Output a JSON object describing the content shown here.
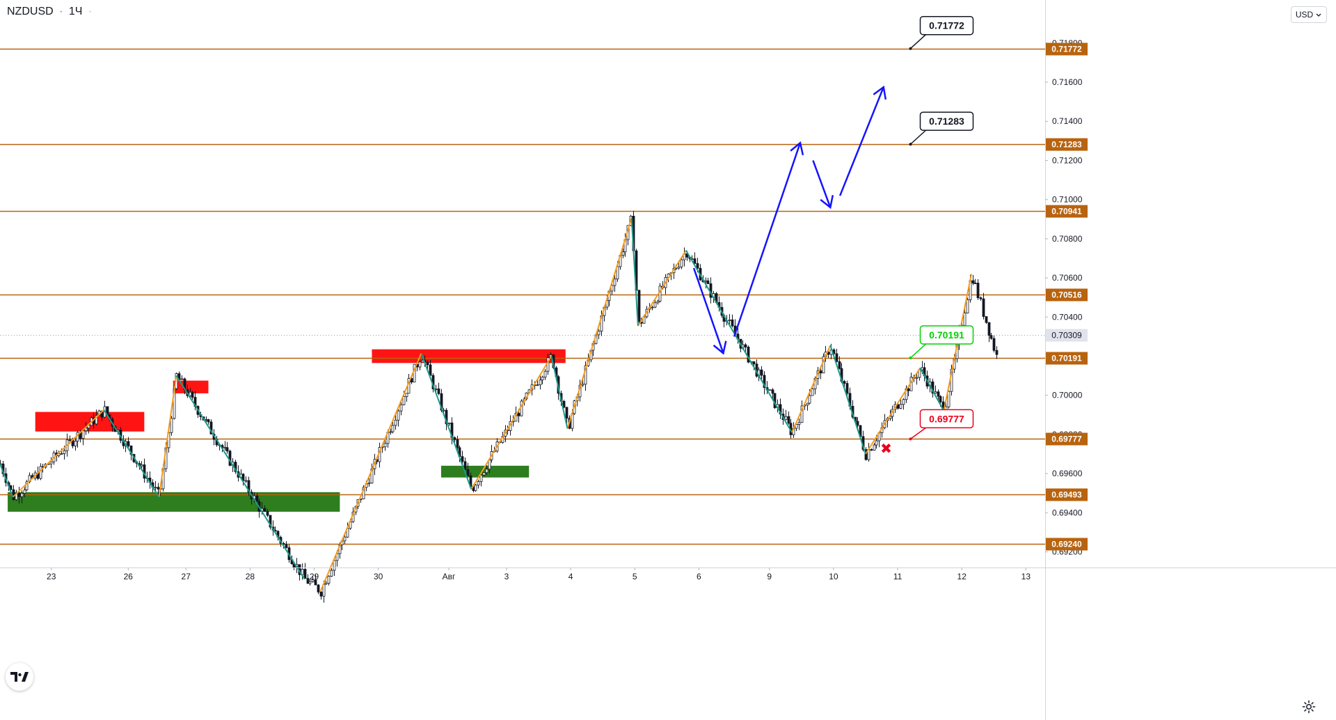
{
  "header": {
    "symbol": "NZDUSD",
    "separator": "·",
    "interval": "1Ч",
    "dot": "·"
  },
  "currency_button": {
    "label": "USD",
    "chevron": "chevron-down-icon"
  },
  "colors": {
    "level": "#b8630e",
    "green_label": "#00d200",
    "red_label": "#e8001c",
    "blue_arrow": "#1414ff",
    "up_leg": "#f59a1a",
    "down_leg": "#1e9a88",
    "supply_zone": "#ff1414",
    "demand_zone": "#2e7d1e",
    "bull": "#131722"
  },
  "chart_data": {
    "type": "candlestick",
    "symbol": "NZDUSD",
    "interval": "1Ч",
    "ylim": [
      0.6912,
      0.7202
    ],
    "y_ticks": [
      "0.71800",
      "0.71600",
      "0.71400",
      "0.71200",
      "0.71000",
      "0.70800",
      "0.70600",
      "0.70400",
      "0.70000",
      "0.69800",
      "0.69600",
      "0.69400",
      "0.69200"
    ],
    "x_ticks": [
      {
        "label": "23",
        "x": 0.8
      },
      {
        "label": "26",
        "x": 2
      },
      {
        "label": "27",
        "x": 2.9
      },
      {
        "label": "28",
        "x": 3.9
      },
      {
        "label": "29",
        "x": 4.9
      },
      {
        "label": "30",
        "x": 5.9
      },
      {
        "label": "Авг",
        "x": 7
      },
      {
        "label": "3",
        "x": 7.9
      },
      {
        "label": "4",
        "x": 8.9
      },
      {
        "label": "5",
        "x": 9.9
      },
      {
        "label": "6",
        "x": 10.9
      },
      {
        "label": "9",
        "x": 12
      },
      {
        "label": "10",
        "x": 13
      },
      {
        "label": "11",
        "x": 14
      },
      {
        "label": "12",
        "x": 15
      },
      {
        "label": "13",
        "x": 16
      }
    ],
    "x_range": [
      0,
      16.3
    ],
    "levels": [
      {
        "price": 0.71772,
        "label": "0.71772"
      },
      {
        "price": 0.71283,
        "label": "0.71283"
      },
      {
        "price": 0.70941,
        "label": "0.70941"
      },
      {
        "price": 0.70516,
        "label": "0.70516"
      },
      {
        "price": 0.70191,
        "label": "0.70191"
      },
      {
        "price": 0.69777,
        "label": "0.69777"
      },
      {
        "price": 0.69493,
        "label": "0.69493"
      },
      {
        "price": 0.6924,
        "label": "0.69240"
      }
    ],
    "last_price": {
      "price": 0.70309,
      "label": "0.70309"
    },
    "callouts": [
      {
        "text": "0.71772",
        "x": 14.2,
        "price": 0.71772,
        "style": "black"
      },
      {
        "text": "0.71283",
        "x": 14.2,
        "price": 0.71283,
        "style": "black"
      },
      {
        "text": "0.70191",
        "x": 14.2,
        "price": 0.70191,
        "style": "green"
      },
      {
        "text": "0.69777",
        "x": 14.2,
        "price": 0.69777,
        "style": "red"
      }
    ],
    "zones": [
      {
        "kind": "supply",
        "x0": 0.55,
        "x1": 2.25,
        "p0": 0.69915,
        "p1": 0.69815
      },
      {
        "kind": "supply",
        "x0": 2.7,
        "x1": 3.25,
        "p0": 0.70075,
        "p1": 0.7001
      },
      {
        "kind": "supply",
        "x0": 5.8,
        "x1": 8.82,
        "p0": 0.70235,
        "p1": 0.70165
      },
      {
        "kind": "demand",
        "x0": 0.12,
        "x1": 5.3,
        "p0": 0.69505,
        "p1": 0.69405
      },
      {
        "kind": "demand",
        "x0": 6.88,
        "x1": 8.25,
        "p0": 0.6964,
        "p1": 0.6958
      }
    ],
    "up_legs": [
      [
        [
          0.2,
          0.6948
        ],
        [
          1.62,
          0.69925
        ]
      ],
      [
        [
          2.48,
          0.6948
        ],
        [
          2.75,
          0.701
        ]
      ],
      [
        [
          5.0,
          0.69
        ],
        [
          6.57,
          0.70215
        ]
      ],
      [
        [
          7.35,
          0.6952
        ],
        [
          8.6,
          0.702
        ]
      ],
      [
        [
          8.85,
          0.6983
        ],
        [
          9.85,
          0.70905
        ]
      ],
      [
        [
          9.95,
          0.70355
        ],
        [
          10.7,
          0.7074
        ]
      ],
      [
        [
          12.35,
          0.6981
        ],
        [
          12.95,
          0.70255
        ]
      ],
      [
        [
          13.5,
          0.697
        ],
        [
          14.35,
          0.7014
        ]
      ],
      [
        [
          14.72,
          0.6992
        ],
        [
          15.15,
          0.7062
        ]
      ]
    ],
    "down_legs": [
      [
        [
          0.0,
          0.6965
        ],
        [
          0.2,
          0.6948
        ]
      ],
      [
        [
          1.62,
          0.69925
        ],
        [
          2.48,
          0.6948
        ]
      ],
      [
        [
          2.75,
          0.701
        ],
        [
          4.75,
          0.6906
        ]
      ],
      [
        [
          6.57,
          0.70215
        ],
        [
          7.35,
          0.6952
        ]
      ],
      [
        [
          8.6,
          0.702
        ],
        [
          8.85,
          0.6983
        ]
      ],
      [
        [
          9.85,
          0.70905
        ],
        [
          9.95,
          0.70355
        ]
      ],
      [
        [
          10.7,
          0.7074
        ],
        [
          12.35,
          0.6981
        ]
      ],
      [
        [
          12.95,
          0.70255
        ],
        [
          13.5,
          0.697
        ]
      ],
      [
        [
          14.35,
          0.7014
        ],
        [
          14.72,
          0.6992
        ]
      ]
    ],
    "blue_path": [
      {
        "segs": [
          [
            [
              10.82,
              0.7065
            ],
            [
              11.28,
              0.70215
            ]
          ]
        ],
        "head": [
          11.28,
          0.70215
        ]
      },
      {
        "segs": [
          [
            [
              11.45,
              0.703
            ],
            [
              12.48,
              0.7129
            ]
          ]
        ],
        "head": [
          12.48,
          0.7129
        ]
      },
      {
        "segs": [
          [
            [
              12.68,
              0.712
            ],
            [
              12.95,
              0.7096
            ]
          ]
        ],
        "head": [
          12.95,
          0.7096
        ]
      },
      {
        "segs": [
          [
            [
              13.1,
              0.7102
            ],
            [
              13.78,
              0.71575
            ]
          ]
        ],
        "head": [
          13.78,
          0.71575
        ]
      }
    ],
    "target_marker": {
      "symbol": "✖",
      "x": 13.82,
      "price": 0.69728
    }
  }
}
